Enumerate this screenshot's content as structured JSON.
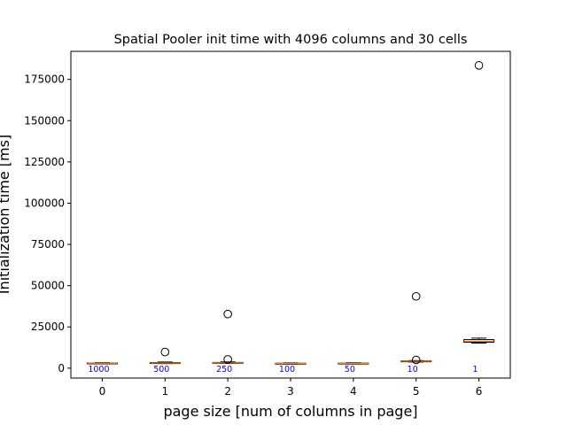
{
  "chart_data": {
    "type": "box",
    "title": "Spatial Pooler init time with 4096 columns and 30 cells",
    "xlabel": "page size [num of columns in page]",
    "ylabel": "Initialization time [ms]",
    "xlim": [
      -0.5,
      6.5
    ],
    "ylim": [
      -6000,
      192000
    ],
    "x_ticks": [
      0,
      1,
      2,
      3,
      4,
      5,
      6
    ],
    "y_ticks": [
      0,
      25000,
      50000,
      75000,
      100000,
      125000,
      150000,
      175000
    ],
    "grid": false,
    "annotation_color": "#0000ff",
    "box_edge_color": "#000000",
    "box_fill_color": "#ffffff",
    "median_color": "#ff7f0e",
    "boxes": [
      {
        "x": 0,
        "label": "1000",
        "whislo": 2800,
        "q1": 2900,
        "med": 3000,
        "q3": 3150,
        "whishi": 3300,
        "fliers": []
      },
      {
        "x": 1,
        "label": "500",
        "whislo": 2800,
        "q1": 2950,
        "med": 3100,
        "q3": 3350,
        "whishi": 3700,
        "fliers": [
          9800
        ]
      },
      {
        "x": 2,
        "label": "250",
        "whislo": 2900,
        "q1": 3050,
        "med": 3200,
        "q3": 3450,
        "whishi": 3800,
        "fliers": [
          5300,
          32800
        ]
      },
      {
        "x": 3,
        "label": "100",
        "whislo": 2500,
        "q1": 2700,
        "med": 2850,
        "q3": 3000,
        "whishi": 3200,
        "fliers": []
      },
      {
        "x": 4,
        "label": "50",
        "whislo": 2500,
        "q1": 2700,
        "med": 2850,
        "q3": 3050,
        "whishi": 3250,
        "fliers": []
      },
      {
        "x": 5,
        "label": "10",
        "whislo": 3700,
        "q1": 3950,
        "med": 4150,
        "q3": 4400,
        "whishi": 4600,
        "fliers": [
          5000,
          43500
        ]
      },
      {
        "x": 6,
        "label": "1",
        "whislo": 15200,
        "q1": 15700,
        "med": 16300,
        "q3": 17300,
        "whishi": 18200,
        "fliers": [
          183500
        ]
      }
    ]
  }
}
